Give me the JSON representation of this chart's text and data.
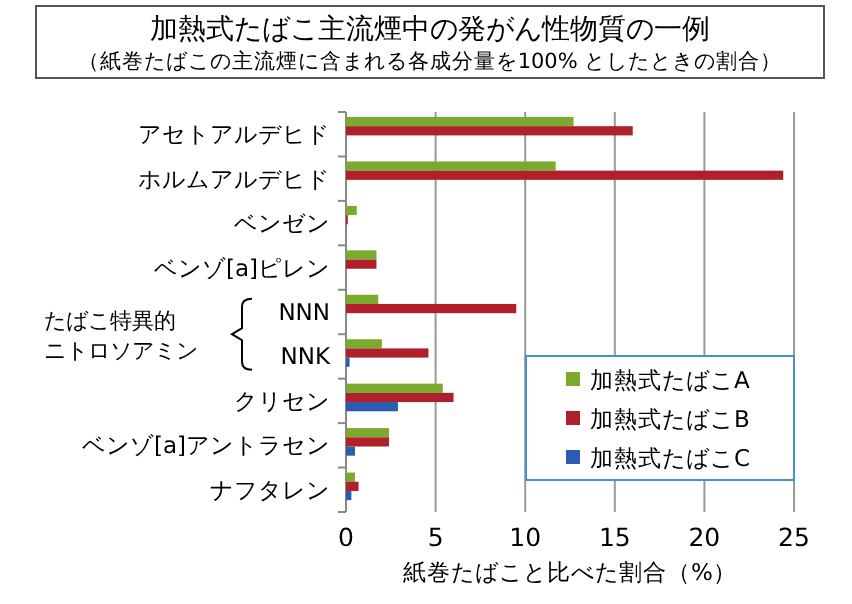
{
  "chart_data": {
    "type": "bar",
    "orientation": "horizontal",
    "title": "加熱式たばこ主流煙中の発がん性物質の一例",
    "subtitle": "（紙巻たばこの主流煙に含まれる各成分量を100% としたときの割合）",
    "xlabel": "紙巻たばこと比べた割合（%）",
    "categories": [
      "アセトアルデヒド",
      "ホルムアルデヒド",
      "ベンゼン",
      "ベンゾ[a]ピレン",
      "NNN",
      "NNK",
      "クリセン",
      "ベンゾ[a]アントラセン",
      "ナフタレン"
    ],
    "annotations": [
      "たばこ特異的",
      "ニトロソアミン"
    ],
    "series": [
      {
        "name": "加熱式たばこA",
        "color": "#7aab2e",
        "values": [
          12.7,
          11.7,
          0.6,
          1.7,
          1.8,
          2.0,
          5.4,
          2.4,
          0.5
        ]
      },
      {
        "name": "加熱式たばこB",
        "color": "#b0202a",
        "values": [
          16.0,
          24.4,
          0.1,
          1.7,
          9.5,
          4.6,
          6.0,
          2.4,
          0.7
        ]
      },
      {
        "name": "加熱式たばこC",
        "color": "#2a5cb0",
        "values": [
          null,
          null,
          null,
          null,
          null,
          0.2,
          2.9,
          0.5,
          0.3
        ]
      }
    ],
    "xlim": [
      0,
      25
    ],
    "xticks": [
      0,
      5,
      10,
      15,
      20,
      25
    ],
    "grid": "x",
    "legend": "bottom right"
  }
}
